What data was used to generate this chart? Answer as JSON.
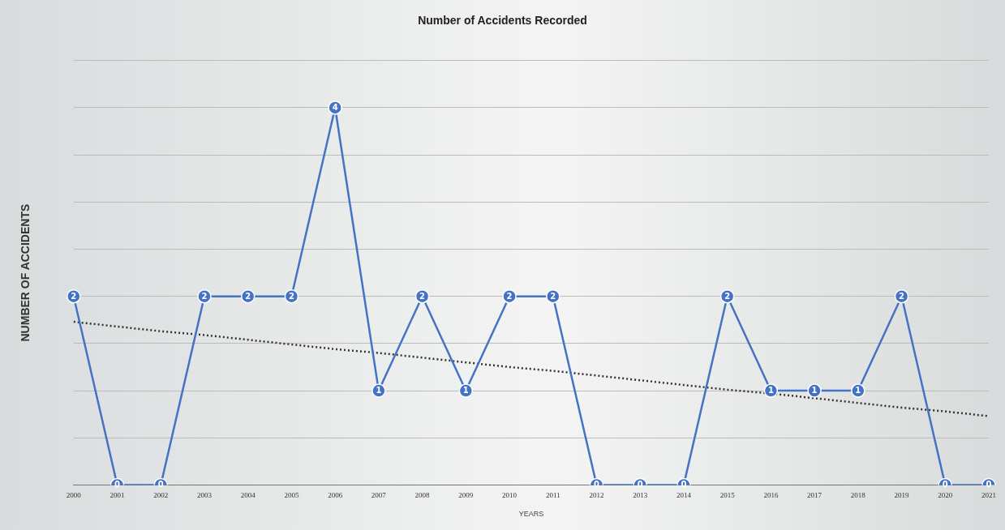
{
  "chart_data": {
    "type": "line",
    "title": "Number of Accidents Recorded",
    "xlabel": "YEARS",
    "ylabel": "NUMBER OF ACCIDENTS",
    "categories": [
      "2000",
      "2001",
      "2002",
      "2003",
      "2004",
      "2005",
      "2006",
      "2007",
      "2008",
      "2009",
      "2010",
      "2011",
      "2012",
      "2013",
      "2014",
      "2015",
      "2016",
      "2017",
      "2018",
      "2019",
      "2020",
      "2021"
    ],
    "series": [
      {
        "color": "#4472c4",
        "values": [
          2,
          0,
          0,
          2,
          2,
          2,
          4,
          1,
          2,
          1,
          2,
          2,
          0,
          0,
          0,
          2,
          1,
          1,
          1,
          2,
          0,
          0
        ],
        "marker": "circle",
        "data_labels": true
      },
      {
        "type": "line",
        "color": "#333333",
        "values": [
          1.73,
          1.68,
          1.63,
          1.59,
          1.54,
          1.49,
          1.44,
          1.4,
          1.35,
          1.3,
          1.25,
          1.21,
          1.16,
          1.11,
          1.06,
          1.01,
          0.97,
          0.92,
          0.87,
          0.82,
          0.78,
          0.73
        ],
        "marker": "none",
        "line_style": "dotted"
      }
    ],
    "ylim": [
      0,
      4.5
    ],
    "yticks": [
      {
        "value": 0,
        "label": null
      },
      {
        "value": 0.5,
        "label": null
      },
      {
        "value": 1,
        "label": null
      },
      {
        "value": 1.5,
        "label": null
      },
      {
        "value": 2,
        "label": null
      },
      {
        "value": 2.5,
        "label": null
      },
      {
        "value": 3,
        "label": null
      },
      {
        "value": 3.5,
        "label": null
      },
      {
        "value": 4,
        "label": null
      },
      {
        "value": 4.5,
        "label": null
      }
    ],
    "tick_labels": "x",
    "grid": "y",
    "legend": false
  }
}
